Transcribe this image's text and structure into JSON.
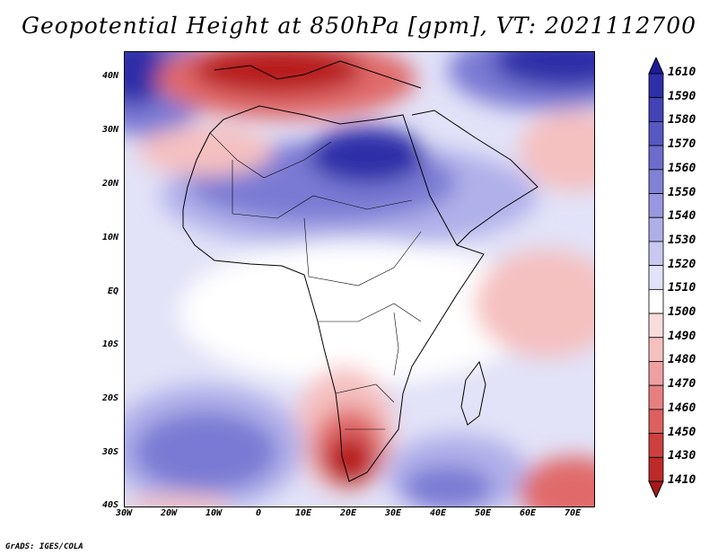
{
  "title": "Geopotential Height at 850hPa [gpm], VT: 2021112700",
  "credit": "GrADS: IGES/COLA",
  "y_axis_labels": [
    "40N",
    "30N",
    "20N",
    "10N",
    "EQ",
    "10S",
    "20S",
    "30S",
    "40S"
  ],
  "x_axis_labels": [
    "30W",
    "20W",
    "10W",
    "0",
    "10E",
    "20E",
    "30E",
    "40E",
    "50E",
    "60E",
    "70E"
  ],
  "colorbar": {
    "levels": [
      "1610",
      "1590",
      "1580",
      "1570",
      "1560",
      "1550",
      "1540",
      "1530",
      "1520",
      "1510",
      "1500",
      "1490",
      "1480",
      "1470",
      "1460",
      "1450",
      "1430",
      "1410"
    ],
    "colors": [
      "#1c1c9a",
      "#2e2ea8",
      "#4343b6",
      "#5858c2",
      "#6c6ccd",
      "#8181d6",
      "#9898e0",
      "#afafe8",
      "#c8c8f0",
      "#e2e2f8",
      "#ffffff",
      "#fadcdc",
      "#f5c0c0",
      "#eea0a0",
      "#e68080",
      "#dc6060",
      "#ce4040",
      "#bc2a2a",
      "#a81818"
    ]
  },
  "map_colors": {
    "ocean_base": "#e2e2f8",
    "neutral": "#ffffff",
    "low_light": "#f5c0c0",
    "low_mid": "#e06a6a",
    "low_deep": "#b81e1e",
    "high_light": "#b0b0ea",
    "high_mid": "#7a7ad4",
    "high_deep": "#2e2ea8",
    "coast": "#000000"
  }
}
